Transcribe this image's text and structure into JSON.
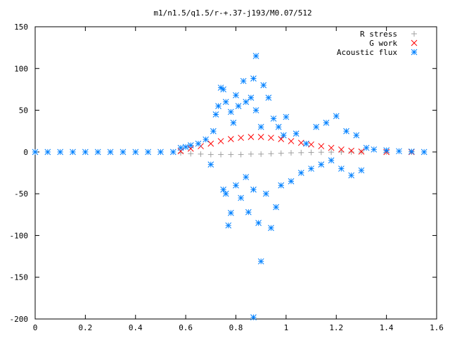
{
  "chart_data": {
    "type": "scatter",
    "title": "m1/n1.5/q1.5/r-+.37-j193/M0.07/512",
    "xlabel": "",
    "ylabel": "",
    "xlim": [
      0,
      1.6
    ],
    "ylim": [
      -200,
      150
    ],
    "x_ticks": [
      {
        "value": 0,
        "label": "0"
      },
      {
        "value": 0.2,
        "label": "0.2"
      },
      {
        "value": 0.4,
        "label": "0.4"
      },
      {
        "value": 0.6,
        "label": "0.6"
      },
      {
        "value": 0.8,
        "label": "0.8"
      },
      {
        "value": 1.0,
        "label": "1"
      },
      {
        "value": 1.2,
        "label": "1.2"
      },
      {
        "value": 1.4,
        "label": "1.4"
      },
      {
        "value": 1.6,
        "label": "1.6"
      }
    ],
    "y_ticks": [
      {
        "value": 150,
        "label": "150"
      },
      {
        "value": 100,
        "label": "100"
      },
      {
        "value": 50,
        "label": "50"
      },
      {
        "value": 0,
        "label": "0"
      },
      {
        "value": -50,
        "label": "-50"
      },
      {
        "value": -100,
        "label": "-100"
      },
      {
        "value": -150,
        "label": "-150"
      },
      {
        "value": -200,
        "label": "-200"
      }
    ],
    "grid": false,
    "legend_position": "top-right",
    "series": [
      {
        "name": "R stress",
        "marker": "plus",
        "color": "#a0a0a0",
        "points": [
          [
            0.58,
            -1.0
          ],
          [
            0.62,
            -2.0
          ],
          [
            0.66,
            -2.5
          ],
          [
            0.7,
            -3.0
          ],
          [
            0.74,
            -3.0
          ],
          [
            0.78,
            -3.0
          ],
          [
            0.82,
            -3.0
          ],
          [
            0.86,
            -2.5
          ],
          [
            0.9,
            -2.5
          ],
          [
            0.94,
            -2.0
          ],
          [
            0.98,
            -1.5
          ],
          [
            1.02,
            -1.0
          ],
          [
            1.06,
            -0.8
          ],
          [
            1.1,
            -0.5
          ],
          [
            1.14,
            -0.3
          ],
          [
            1.18,
            -0.2
          ],
          [
            1.22,
            -0.1
          ],
          [
            1.26,
            0
          ],
          [
            1.3,
            0
          ],
          [
            1.4,
            0
          ],
          [
            1.5,
            0
          ]
        ]
      },
      {
        "name": "G work",
        "marker": "cross",
        "color": "#ff0000",
        "points": [
          [
            0.58,
            1.0
          ],
          [
            0.62,
            4.0
          ],
          [
            0.66,
            7.0
          ],
          [
            0.7,
            10.0
          ],
          [
            0.74,
            13.0
          ],
          [
            0.78,
            15.5
          ],
          [
            0.82,
            17.0
          ],
          [
            0.86,
            18.0
          ],
          [
            0.9,
            18.0
          ],
          [
            0.94,
            17.0
          ],
          [
            0.98,
            15.5
          ],
          [
            1.02,
            13.0
          ],
          [
            1.06,
            11.0
          ],
          [
            1.1,
            9.0
          ],
          [
            1.14,
            7.0
          ],
          [
            1.18,
            5.0
          ],
          [
            1.22,
            3.0
          ],
          [
            1.26,
            1.5
          ],
          [
            1.3,
            0.5
          ],
          [
            1.4,
            0
          ],
          [
            1.5,
            0
          ]
        ]
      },
      {
        "name": "Acoustic flux",
        "marker": "asterisk",
        "color": "#0080ff",
        "points": [
          [
            0.0,
            0
          ],
          [
            0.05,
            0
          ],
          [
            0.1,
            0
          ],
          [
            0.15,
            0
          ],
          [
            0.2,
            0
          ],
          [
            0.25,
            0
          ],
          [
            0.3,
            0
          ],
          [
            0.35,
            0
          ],
          [
            0.4,
            0
          ],
          [
            0.45,
            0
          ],
          [
            0.5,
            0
          ],
          [
            0.55,
            0
          ],
          [
            0.58,
            5
          ],
          [
            0.6,
            6
          ],
          [
            0.62,
            8
          ],
          [
            0.65,
            10
          ],
          [
            0.68,
            15
          ],
          [
            0.7,
            -15
          ],
          [
            0.71,
            25
          ],
          [
            0.72,
            45
          ],
          [
            0.73,
            55
          ],
          [
            0.74,
            77
          ],
          [
            0.75,
            75
          ],
          [
            0.75,
            -45
          ],
          [
            0.76,
            -50
          ],
          [
            0.76,
            60
          ],
          [
            0.77,
            -88
          ],
          [
            0.78,
            48
          ],
          [
            0.78,
            -73
          ],
          [
            0.79,
            35
          ],
          [
            0.8,
            68
          ],
          [
            0.8,
            -40
          ],
          [
            0.81,
            55
          ],
          [
            0.82,
            -55
          ],
          [
            0.83,
            85
          ],
          [
            0.84,
            -30
          ],
          [
            0.84,
            60
          ],
          [
            0.85,
            -72
          ],
          [
            0.86,
            65
          ],
          [
            0.87,
            88
          ],
          [
            0.87,
            -45
          ],
          [
            0.88,
            115
          ],
          [
            0.88,
            50
          ],
          [
            0.89,
            -85
          ],
          [
            0.9,
            30
          ],
          [
            0.9,
            -131
          ],
          [
            0.91,
            80
          ],
          [
            0.92,
            -50
          ],
          [
            0.93,
            65
          ],
          [
            0.94,
            -91
          ],
          [
            0.95,
            40
          ],
          [
            0.96,
            -66
          ],
          [
            0.97,
            30
          ],
          [
            0.98,
            -40
          ],
          [
            0.99,
            20
          ],
          [
            1.0,
            42
          ],
          [
            1.02,
            -35
          ],
          [
            1.04,
            22
          ],
          [
            1.06,
            -25
          ],
          [
            1.08,
            10
          ],
          [
            1.1,
            -20
          ],
          [
            1.12,
            30
          ],
          [
            1.14,
            -15
          ],
          [
            1.16,
            35
          ],
          [
            1.18,
            -10
          ],
          [
            1.2,
            43
          ],
          [
            1.22,
            -20
          ],
          [
            1.24,
            25
          ],
          [
            1.26,
            -28
          ],
          [
            1.28,
            20
          ],
          [
            1.3,
            -22
          ],
          [
            1.32,
            5
          ],
          [
            1.35,
            3
          ],
          [
            1.4,
            2
          ],
          [
            1.45,
            1
          ],
          [
            1.5,
            0.5
          ],
          [
            1.55,
            0
          ],
          [
            0.87,
            -198
          ]
        ]
      }
    ]
  }
}
